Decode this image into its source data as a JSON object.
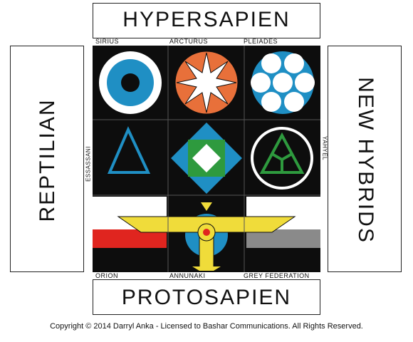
{
  "labels": {
    "top": "HYPERSAPIEN",
    "bottom": "PROTOSAPIEN",
    "left": "REPTILIAN",
    "right": "NEW HYBRIDS"
  },
  "row_labels": {
    "sirius": "SIRIUS",
    "arcturus": "ARCTURUS",
    "pleiades": "PLEIADES",
    "orion": "ORION",
    "annunaki": "ANNUNAKI",
    "grey_federation": "GREY FEDERATION",
    "essassani": "ESSASSANI",
    "yahyel": "YAHYEL"
  },
  "copyright": "Copyright © 2014 Darryl Anka - Licensed to Bashar Communications.  All Rights Reserved.",
  "colors": {
    "black": "#0d0d0d",
    "blue": "#1f8fc4",
    "orange": "#e8703a",
    "green": "#2e9a3e",
    "yellow": "#f0dc3a",
    "red": "#e0251f",
    "grey": "#8a8a8a"
  }
}
